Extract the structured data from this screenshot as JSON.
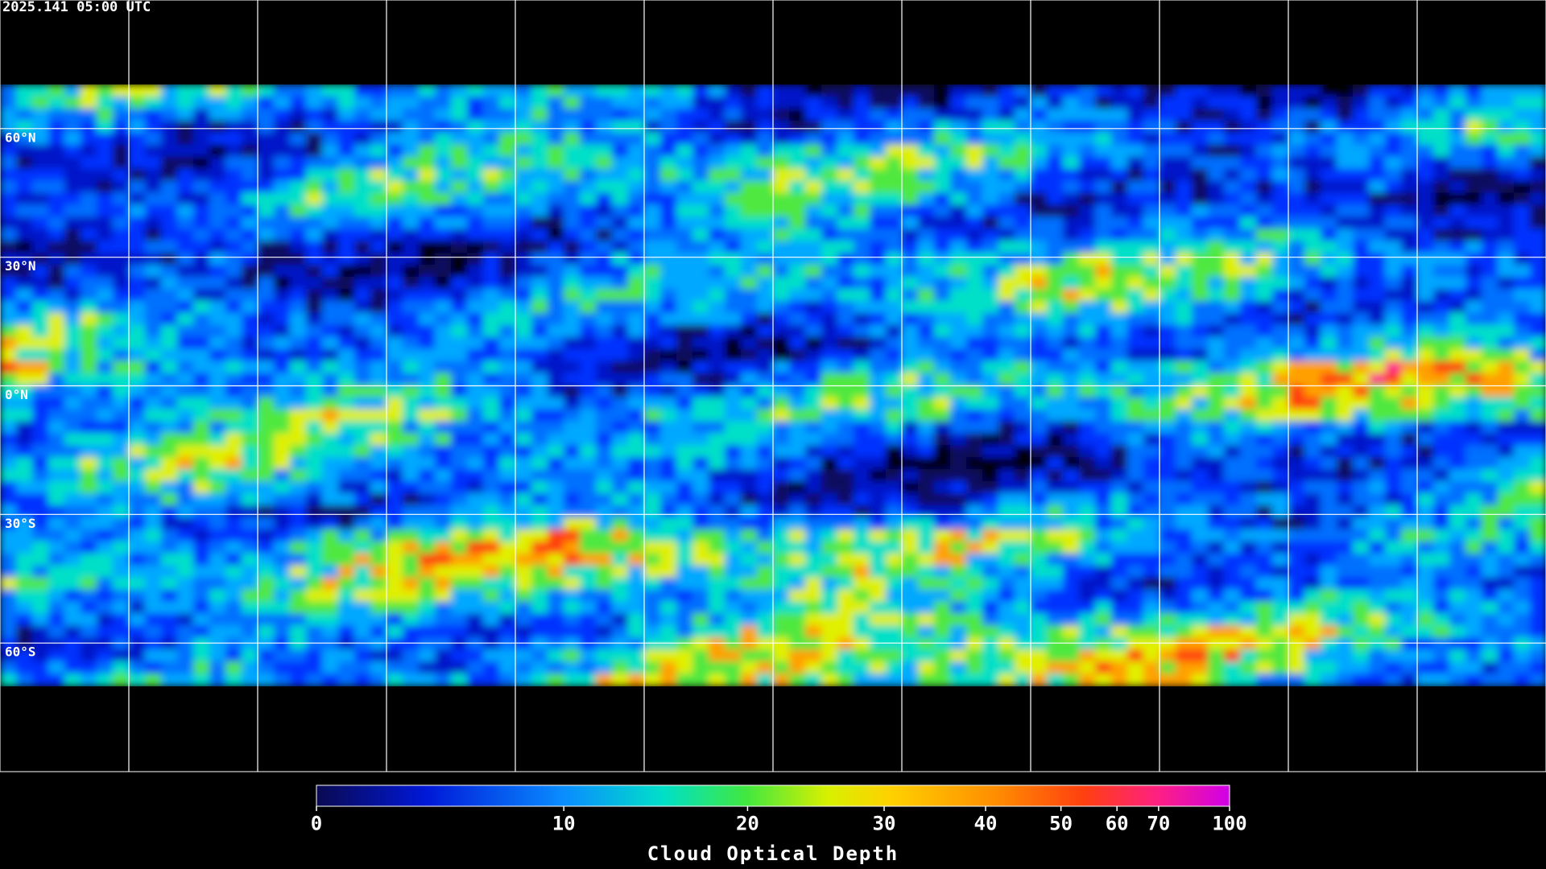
{
  "timestamp": "2025.141 05:00 UTC",
  "latitudes": [
    {
      "value": 60,
      "label": "60°N"
    },
    {
      "value": 30,
      "label": "30°N"
    },
    {
      "value": 0,
      "label": "0°N"
    },
    {
      "value": -30,
      "label": "30°S"
    },
    {
      "value": -60,
      "label": "60°S"
    }
  ],
  "colorbar": {
    "label": "Cloud Optical Depth",
    "lim": [
      0,
      100
    ],
    "ticks": [
      0,
      10,
      20,
      30,
      40,
      50,
      60,
      70,
      100
    ]
  }
}
